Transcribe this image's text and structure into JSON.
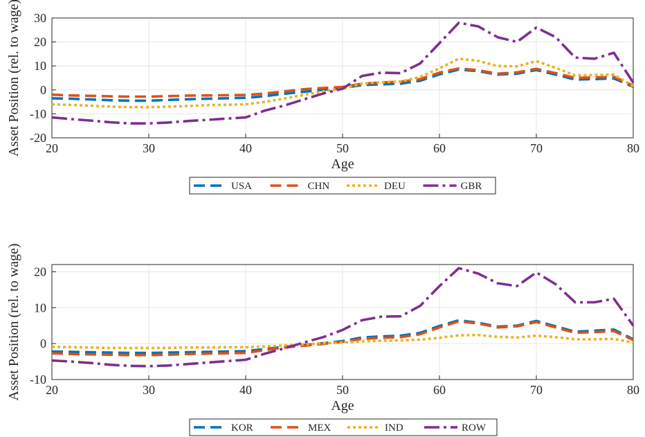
{
  "chart_data": [
    {
      "type": "line",
      "xlabel": "Age",
      "ylabel": "Asset Position (rel. to wage)",
      "xlim": [
        20,
        80
      ],
      "ylim": [
        -20,
        30
      ],
      "xticks": [
        20,
        30,
        40,
        50,
        60,
        70,
        80
      ],
      "yticks": [
        -20,
        -10,
        0,
        10,
        20,
        30
      ],
      "grid": true,
      "legend_position": "bottom, horizontal",
      "x": [
        20,
        22,
        24,
        26,
        28,
        30,
        32,
        34,
        36,
        38,
        40,
        42,
        44,
        46,
        48,
        50,
        52,
        54,
        56,
        58,
        60,
        62,
        64,
        66,
        68,
        70,
        72,
        74,
        76,
        78,
        80
      ],
      "series": [
        {
          "name": "USA",
          "color": "#0072BD",
          "style": "dash",
          "values": [
            -3.5,
            -3.7,
            -4.0,
            -4.3,
            -4.5,
            -4.5,
            -4.2,
            -3.9,
            -3.7,
            -3.5,
            -3.3,
            -2.6,
            -1.6,
            -0.8,
            0.0,
            0.8,
            2.0,
            2.3,
            2.6,
            3.8,
            6.5,
            8.5,
            7.8,
            6.4,
            6.8,
            8.3,
            6.4,
            4.3,
            4.5,
            4.8,
            1.3
          ]
        },
        {
          "name": "CHN",
          "color": "#D95319",
          "style": "dash",
          "values": [
            -2.0,
            -2.3,
            -2.5,
            -2.7,
            -2.8,
            -2.8,
            -2.6,
            -2.4,
            -2.3,
            -2.2,
            -2.1,
            -1.5,
            -0.6,
            0.3,
            0.8,
            1.2,
            2.6,
            3.1,
            3.4,
            4.5,
            7.2,
            9.0,
            8.2,
            6.8,
            7.3,
            8.8,
            7.0,
            5.0,
            5.2,
            5.5,
            1.8
          ]
        },
        {
          "name": "DEU",
          "color": "#EDB120",
          "style": "dot",
          "values": [
            -6.0,
            -6.3,
            -6.6,
            -7.0,
            -7.2,
            -7.2,
            -7.0,
            -6.7,
            -6.4,
            -6.2,
            -6.0,
            -5.0,
            -3.6,
            -2.1,
            -0.6,
            0.5,
            2.6,
            3.2,
            3.5,
            5.4,
            9.0,
            13.0,
            12.1,
            10.0,
            9.8,
            12.0,
            9.2,
            6.0,
            6.2,
            6.4,
            1.5
          ]
        },
        {
          "name": "GBR",
          "color": "#7E2F8E",
          "style": "dashdot",
          "values": [
            -11.5,
            -12.2,
            -12.8,
            -13.5,
            -14.0,
            -14.0,
            -13.6,
            -13.0,
            -12.5,
            -12.0,
            -11.5,
            -8.6,
            -6.5,
            -4.0,
            -1.5,
            0.5,
            5.8,
            7.2,
            7.0,
            11.0,
            19.5,
            28.0,
            26.5,
            22.0,
            20.0,
            26.0,
            22.0,
            13.5,
            13.0,
            15.5,
            3.0
          ]
        }
      ]
    },
    {
      "type": "line",
      "xlabel": "Age",
      "ylabel": "Asset Position (rel. to wage)",
      "xlim": [
        20,
        80
      ],
      "ylim": [
        -10,
        22
      ],
      "xticks": [
        20,
        30,
        40,
        50,
        60,
        70,
        80
      ],
      "yticks": [
        -10,
        0,
        10,
        20
      ],
      "grid": true,
      "legend_position": "bottom, horizontal",
      "x": [
        20,
        22,
        24,
        26,
        28,
        30,
        32,
        34,
        36,
        38,
        40,
        42,
        44,
        46,
        48,
        50,
        52,
        54,
        56,
        58,
        60,
        62,
        64,
        66,
        68,
        70,
        72,
        74,
        76,
        78,
        80
      ],
      "series": [
        {
          "name": "KOR",
          "color": "#0072BD",
          "style": "dash",
          "values": [
            -2.2,
            -2.3,
            -2.4,
            -2.5,
            -2.6,
            -2.6,
            -2.5,
            -2.4,
            -2.3,
            -2.2,
            -2.1,
            -1.5,
            -0.9,
            -0.4,
            0.1,
            0.7,
            1.7,
            2.0,
            2.2,
            3.0,
            4.9,
            6.5,
            5.8,
            4.7,
            5.0,
            6.3,
            4.8,
            3.3,
            3.6,
            3.9,
            1.2
          ]
        },
        {
          "name": "MEX",
          "color": "#D95319",
          "style": "dash",
          "values": [
            -2.7,
            -2.9,
            -3.0,
            -3.1,
            -3.2,
            -3.2,
            -3.1,
            -2.9,
            -2.8,
            -2.7,
            -2.6,
            -1.8,
            -1.1,
            -0.6,
            -0.1,
            0.5,
            1.3,
            1.6,
            1.8,
            2.6,
            4.5,
            6.2,
            5.6,
            4.5,
            4.8,
            6.0,
            4.5,
            3.0,
            3.2,
            3.5,
            1.0
          ]
        },
        {
          "name": "IND",
          "color": "#EDB120",
          "style": "dot",
          "values": [
            -0.9,
            -1.0,
            -1.1,
            -1.2,
            -1.2,
            -1.2,
            -1.2,
            -1.1,
            -1.1,
            -1.0,
            -1.0,
            -0.8,
            -0.5,
            -0.2,
            0.1,
            0.3,
            0.6,
            0.8,
            0.9,
            1.1,
            1.6,
            2.3,
            2.4,
            1.9,
            1.7,
            2.2,
            1.8,
            1.2,
            1.2,
            1.3,
            0.3
          ]
        },
        {
          "name": "ROW",
          "color": "#7E2F8E",
          "style": "dashdot",
          "values": [
            -4.7,
            -5.0,
            -5.4,
            -5.9,
            -6.2,
            -6.3,
            -6.1,
            -5.7,
            -5.3,
            -4.9,
            -4.5,
            -2.8,
            -1.3,
            0.3,
            1.8,
            3.8,
            6.5,
            7.5,
            7.6,
            10.5,
            16.0,
            21.0,
            19.5,
            16.8,
            16.0,
            19.8,
            16.5,
            11.5,
            11.5,
            12.5,
            5.0
          ]
        }
      ]
    }
  ]
}
